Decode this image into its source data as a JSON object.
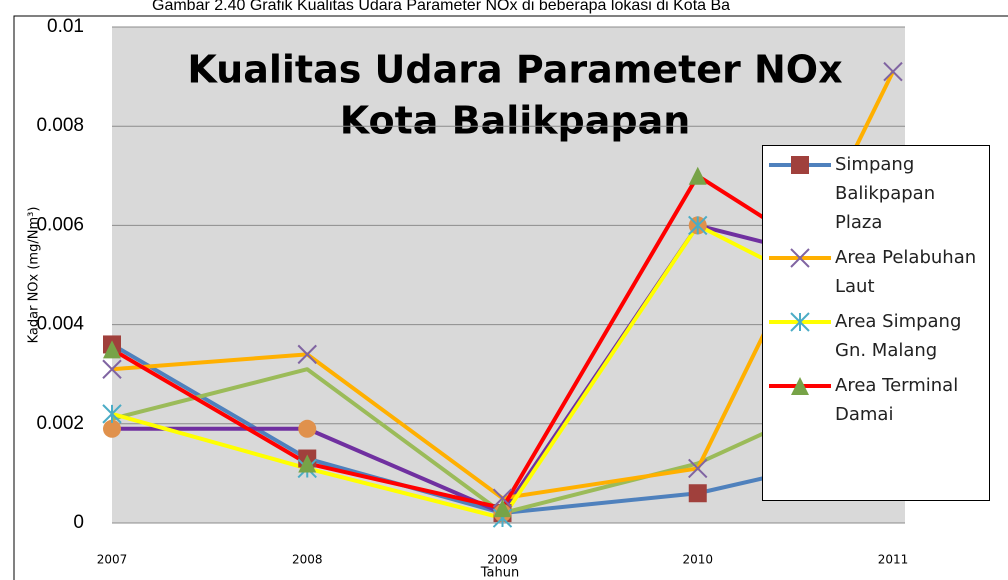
{
  "chart_data": {
    "type": "line",
    "caption": "Gambar 2.40 Grafik Kualitas Udara Parameter NOx di beberapa lokasi di Kota Ba",
    "title": "Kualitas Udara Parameter NOx",
    "subtitle": "Kota Balikpapan",
    "x_label": "Tahun",
    "y_label": "Kadar NOx (mg/Nm³)",
    "categories": [
      "2007",
      "2008",
      "2009",
      "2010",
      "2011"
    ],
    "ylim": [
      0,
      0.01
    ],
    "yticks": [
      0,
      0.002,
      0.004,
      0.006,
      0.008,
      0.01
    ],
    "grid": true,
    "legend": "right",
    "series": [
      {
        "name": "Simpang Balikpapan Plaza",
        "color": "#4f81bd",
        "marker": "square",
        "marker_color": "#a0403c",
        "values": [
          0.0036,
          0.0013,
          0.0002,
          0.0006,
          0.0015
        ]
      },
      {
        "color": "#9bbb59",
        "values": [
          0.0021,
          0.0031,
          0.0002,
          0.0012,
          0.003
        ]
      },
      {
        "color": "#7030a0",
        "marker": "circle",
        "marker_color": "#e0914c",
        "values": [
          0.0019,
          0.0019,
          0.0002,
          0.006,
          0.005
        ]
      },
      {
        "name": "Area Pelabuhan Laut",
        "color": "#ffb000",
        "marker": "x",
        "marker_color": "#8064a2",
        "values": [
          0.0031,
          0.0034,
          0.0005,
          0.0011,
          0.0091
        ]
      },
      {
        "name": "Area Simpang Gn. Malang",
        "color": "#ffff00",
        "marker": "star",
        "marker_color": "#4bacc6",
        "values": [
          0.0022,
          0.0011,
          0.0001,
          0.006,
          0.004
        ]
      },
      {
        "name": "Area Terminal Damai",
        "color": "#ff0000",
        "marker": "triangle",
        "marker_color": "#77a347",
        "values": [
          0.0035,
          0.0012,
          0.0003,
          0.007,
          0.0045
        ]
      }
    ]
  }
}
